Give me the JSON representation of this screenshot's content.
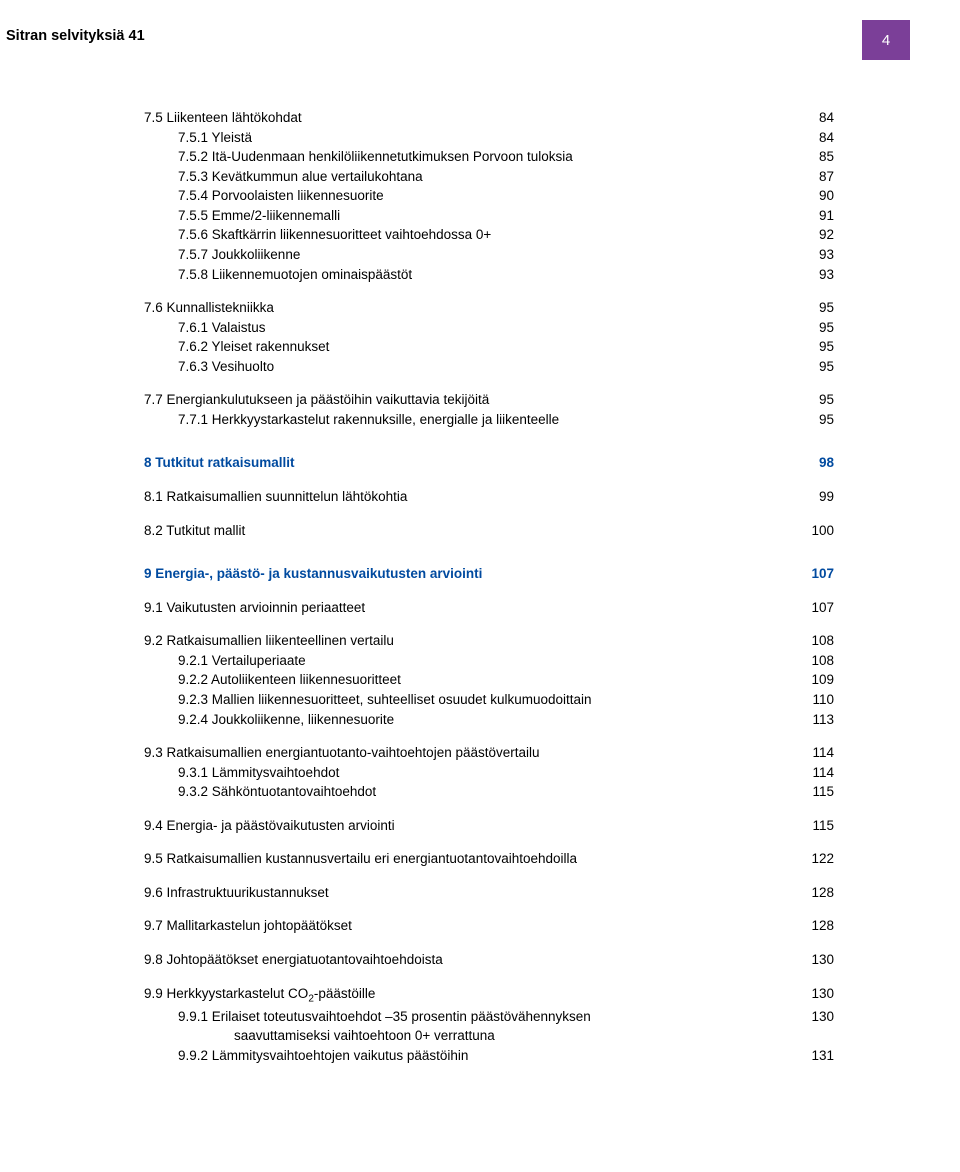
{
  "header": {
    "title": "Sitran selvityksiä 41",
    "pageNumber": "4"
  },
  "colors": {
    "accent": "#7b3f98",
    "link": "#004a9f",
    "text": "#000000",
    "bg": "#ffffff"
  },
  "toc": [
    {
      "indent": 0,
      "label": "7.5 Liikenteen lähtökohdat",
      "page": "84",
      "gap": false
    },
    {
      "indent": 1,
      "label": "7.5.1 Yleistä",
      "page": "84"
    },
    {
      "indent": 1,
      "label": "7.5.2 Itä-Uudenmaan henkilöliikennetutkimuksen Porvoon tuloksia",
      "page": "85"
    },
    {
      "indent": 1,
      "label": "7.5.3 Kevätkummun alue vertailukohtana",
      "page": "87"
    },
    {
      "indent": 1,
      "label": "7.5.4 Porvoolaisten liikennesuorite",
      "page": "90"
    },
    {
      "indent": 1,
      "label": "7.5.5 Emme/2-liikennemalli",
      "page": "91"
    },
    {
      "indent": 1,
      "label": "7.5.6 Skaftkärrin liikennesuoritteet vaihtoehdossa 0+",
      "page": "92"
    },
    {
      "indent": 1,
      "label": "7.5.7 Joukkoliikenne",
      "page": "93"
    },
    {
      "indent": 1,
      "label": "7.5.8 Liikennemuotojen ominaispäästöt",
      "page": "93"
    },
    {
      "indent": 0,
      "label": "7.6 Kunnallistekniikka",
      "page": "95",
      "gap": true
    },
    {
      "indent": 1,
      "label": "7.6.1 Valaistus",
      "page": "95"
    },
    {
      "indent": 1,
      "label": "7.6.2 Yleiset rakennukset",
      "page": "95"
    },
    {
      "indent": 1,
      "label": "7.6.3 Vesihuolto",
      "page": "95"
    },
    {
      "indent": 0,
      "label": "7.7 Energiankulutukseen ja päästöihin vaikuttavia tekijöitä",
      "page": "95",
      "gap": true
    },
    {
      "indent": 1,
      "label": "7.7.1 Herkkyystarkastelut rakennuksille, energialle ja liikenteelle",
      "page": "95"
    },
    {
      "chapter": true,
      "label": "8 Tutkitut ratkaisumallit",
      "page": "98"
    },
    {
      "indent": 0,
      "label": "8.1 Ratkaisumallien suunnittelun lähtökohtia",
      "page": "99",
      "gap": true
    },
    {
      "indent": 0,
      "label": "8.2 Tutkitut mallit",
      "page": "100",
      "gap": true
    },
    {
      "chapter": true,
      "label": "9 Energia-, päästö- ja kustannusvaikutusten arviointi",
      "page": "107"
    },
    {
      "indent": 0,
      "label": "9.1 Vaikutusten arvioinnin periaatteet",
      "page": "107",
      "gap": true
    },
    {
      "indent": 0,
      "label": "9.2 Ratkaisumallien liikenteellinen vertailu",
      "page": "108",
      "gap": true
    },
    {
      "indent": 1,
      "label": "9.2.1 Vertailuperiaate",
      "page": "108"
    },
    {
      "indent": 1,
      "label": "9.2.2 Autoliikenteen liikennesuoritteet",
      "page": "109"
    },
    {
      "indent": 1,
      "label": "9.2.3 Mallien liikennesuoritteet, suhteelliset osuudet kulkumuodoittain",
      "page": "110"
    },
    {
      "indent": 1,
      "label": "9.2.4 Joukkoliikenne, liikennesuorite",
      "page": "113"
    },
    {
      "indent": 0,
      "label": "9.3 Ratkaisumallien energiantuotanto-vaihtoehtojen päästövertailu",
      "page": "114",
      "gap": true
    },
    {
      "indent": 1,
      "label": "9.3.1 Lämmitysvaihtoehdot",
      "page": "114"
    },
    {
      "indent": 1,
      "label": "9.3.2 Sähköntuotantovaihtoehdot",
      "page": "115"
    },
    {
      "indent": 0,
      "label": "9.4 Energia- ja päästövaikutusten arviointi",
      "page": "115",
      "gap": true
    },
    {
      "indent": 0,
      "label": "9.5 Ratkaisumallien kustannusvertailu eri energiantuotantovaihtoehdoilla",
      "page": "122",
      "gap": true
    },
    {
      "indent": 0,
      "label": "9.6 Infrastruktuurikustannukset",
      "page": "128",
      "gap": true
    },
    {
      "indent": 0,
      "label": "9.7 Mallitarkastelun johtopäätökset",
      "page": "128",
      "gap": true
    },
    {
      "indent": 0,
      "label": "9.8 Johtopäätökset energiatuotantovaihtoehdoista",
      "page": "130",
      "gap": true
    },
    {
      "indent": 0,
      "label": "9.9 Herkkyystarkastelut CO",
      "labelSuffix": "-päästöille",
      "sub": "2",
      "page": "130",
      "gap": true
    },
    {
      "indent": 1,
      "multiline": true,
      "line1": "9.9.1 Erilaiset toteutusvaihtoehdot –35 prosentin päästövähennyksen",
      "line2": "saavuttamiseksi vaihtoehtoon 0+ verrattuna",
      "page": "130"
    },
    {
      "indent": 1,
      "label": "9.9.2 Lämmitysvaihtoehtojen vaikutus päästöihin",
      "page": "131"
    }
  ]
}
